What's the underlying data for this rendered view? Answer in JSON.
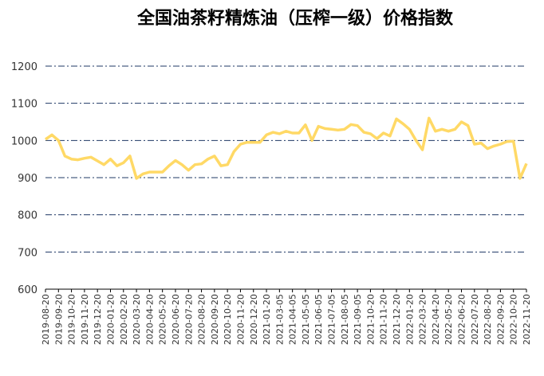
{
  "chart_data": {
    "type": "line",
    "title": "全国油茶籽精炼油（压榨一级）价格指数",
    "categories": [
      "2019-08-20",
      null,
      "2019-09-20",
      null,
      "2019-10-20",
      null,
      "2019-11-20",
      null,
      "2019-12-20",
      null,
      "2020-01-20",
      null,
      "2020-02-20",
      null,
      "2020-03-20",
      null,
      "2020-04-20",
      null,
      "2020-05-20",
      null,
      "2020-06-20",
      null,
      "2020-07-20",
      null,
      "2020-08-20",
      null,
      "2020-09-20",
      null,
      "2020-10-20",
      null,
      "2020-11-20",
      null,
      "2020-12-20",
      null,
      "2021-01-20",
      null,
      "2021-03-05",
      null,
      "2021-04-05",
      null,
      "2021-05-05",
      null,
      "2021-06-05",
      null,
      "2021-07-05",
      null,
      "2021-08-05",
      null,
      "2021-09-05",
      null,
      "2021-10-20",
      null,
      "2021-11-20",
      null,
      "2021-12-20",
      null,
      "2022-01-20",
      null,
      "2022-03-20",
      null,
      "2022-04-20",
      null,
      "2022-05-20",
      null,
      "2022-06-20",
      null,
      "2022-07-20",
      null,
      "2022-08-20",
      null,
      "2022-09-20",
      null,
      "2022-10-20",
      null,
      "2022-11-20"
    ],
    "series": [
      {
        "name": "价格指数",
        "color": "#FFD966",
        "values": [
          1003,
          1015,
          1000,
          958,
          950,
          948,
          952,
          955,
          945,
          935,
          950,
          932,
          940,
          958,
          898,
          910,
          915,
          915,
          915,
          932,
          946,
          935,
          920,
          935,
          937,
          950,
          958,
          932,
          935,
          970,
          990,
          995,
          995,
          995,
          1015,
          1022,
          1018,
          1025,
          1020,
          1020,
          1042,
          1000,
          1038,
          1032,
          1030,
          1028,
          1030,
          1043,
          1040,
          1022,
          1018,
          1005,
          1020,
          1012,
          1058,
          1045,
          1030,
          1000,
          975,
          1060,
          1025,
          1030,
          1025,
          1030,
          1050,
          1040,
          990,
          993,
          978,
          985,
          990,
          997,
          998,
          898,
          938
        ]
      }
    ],
    "ylim": [
      600,
      1200
    ],
    "yticks": [
      600,
      700,
      800,
      900,
      1000,
      1100,
      1200
    ],
    "grid": true
  }
}
